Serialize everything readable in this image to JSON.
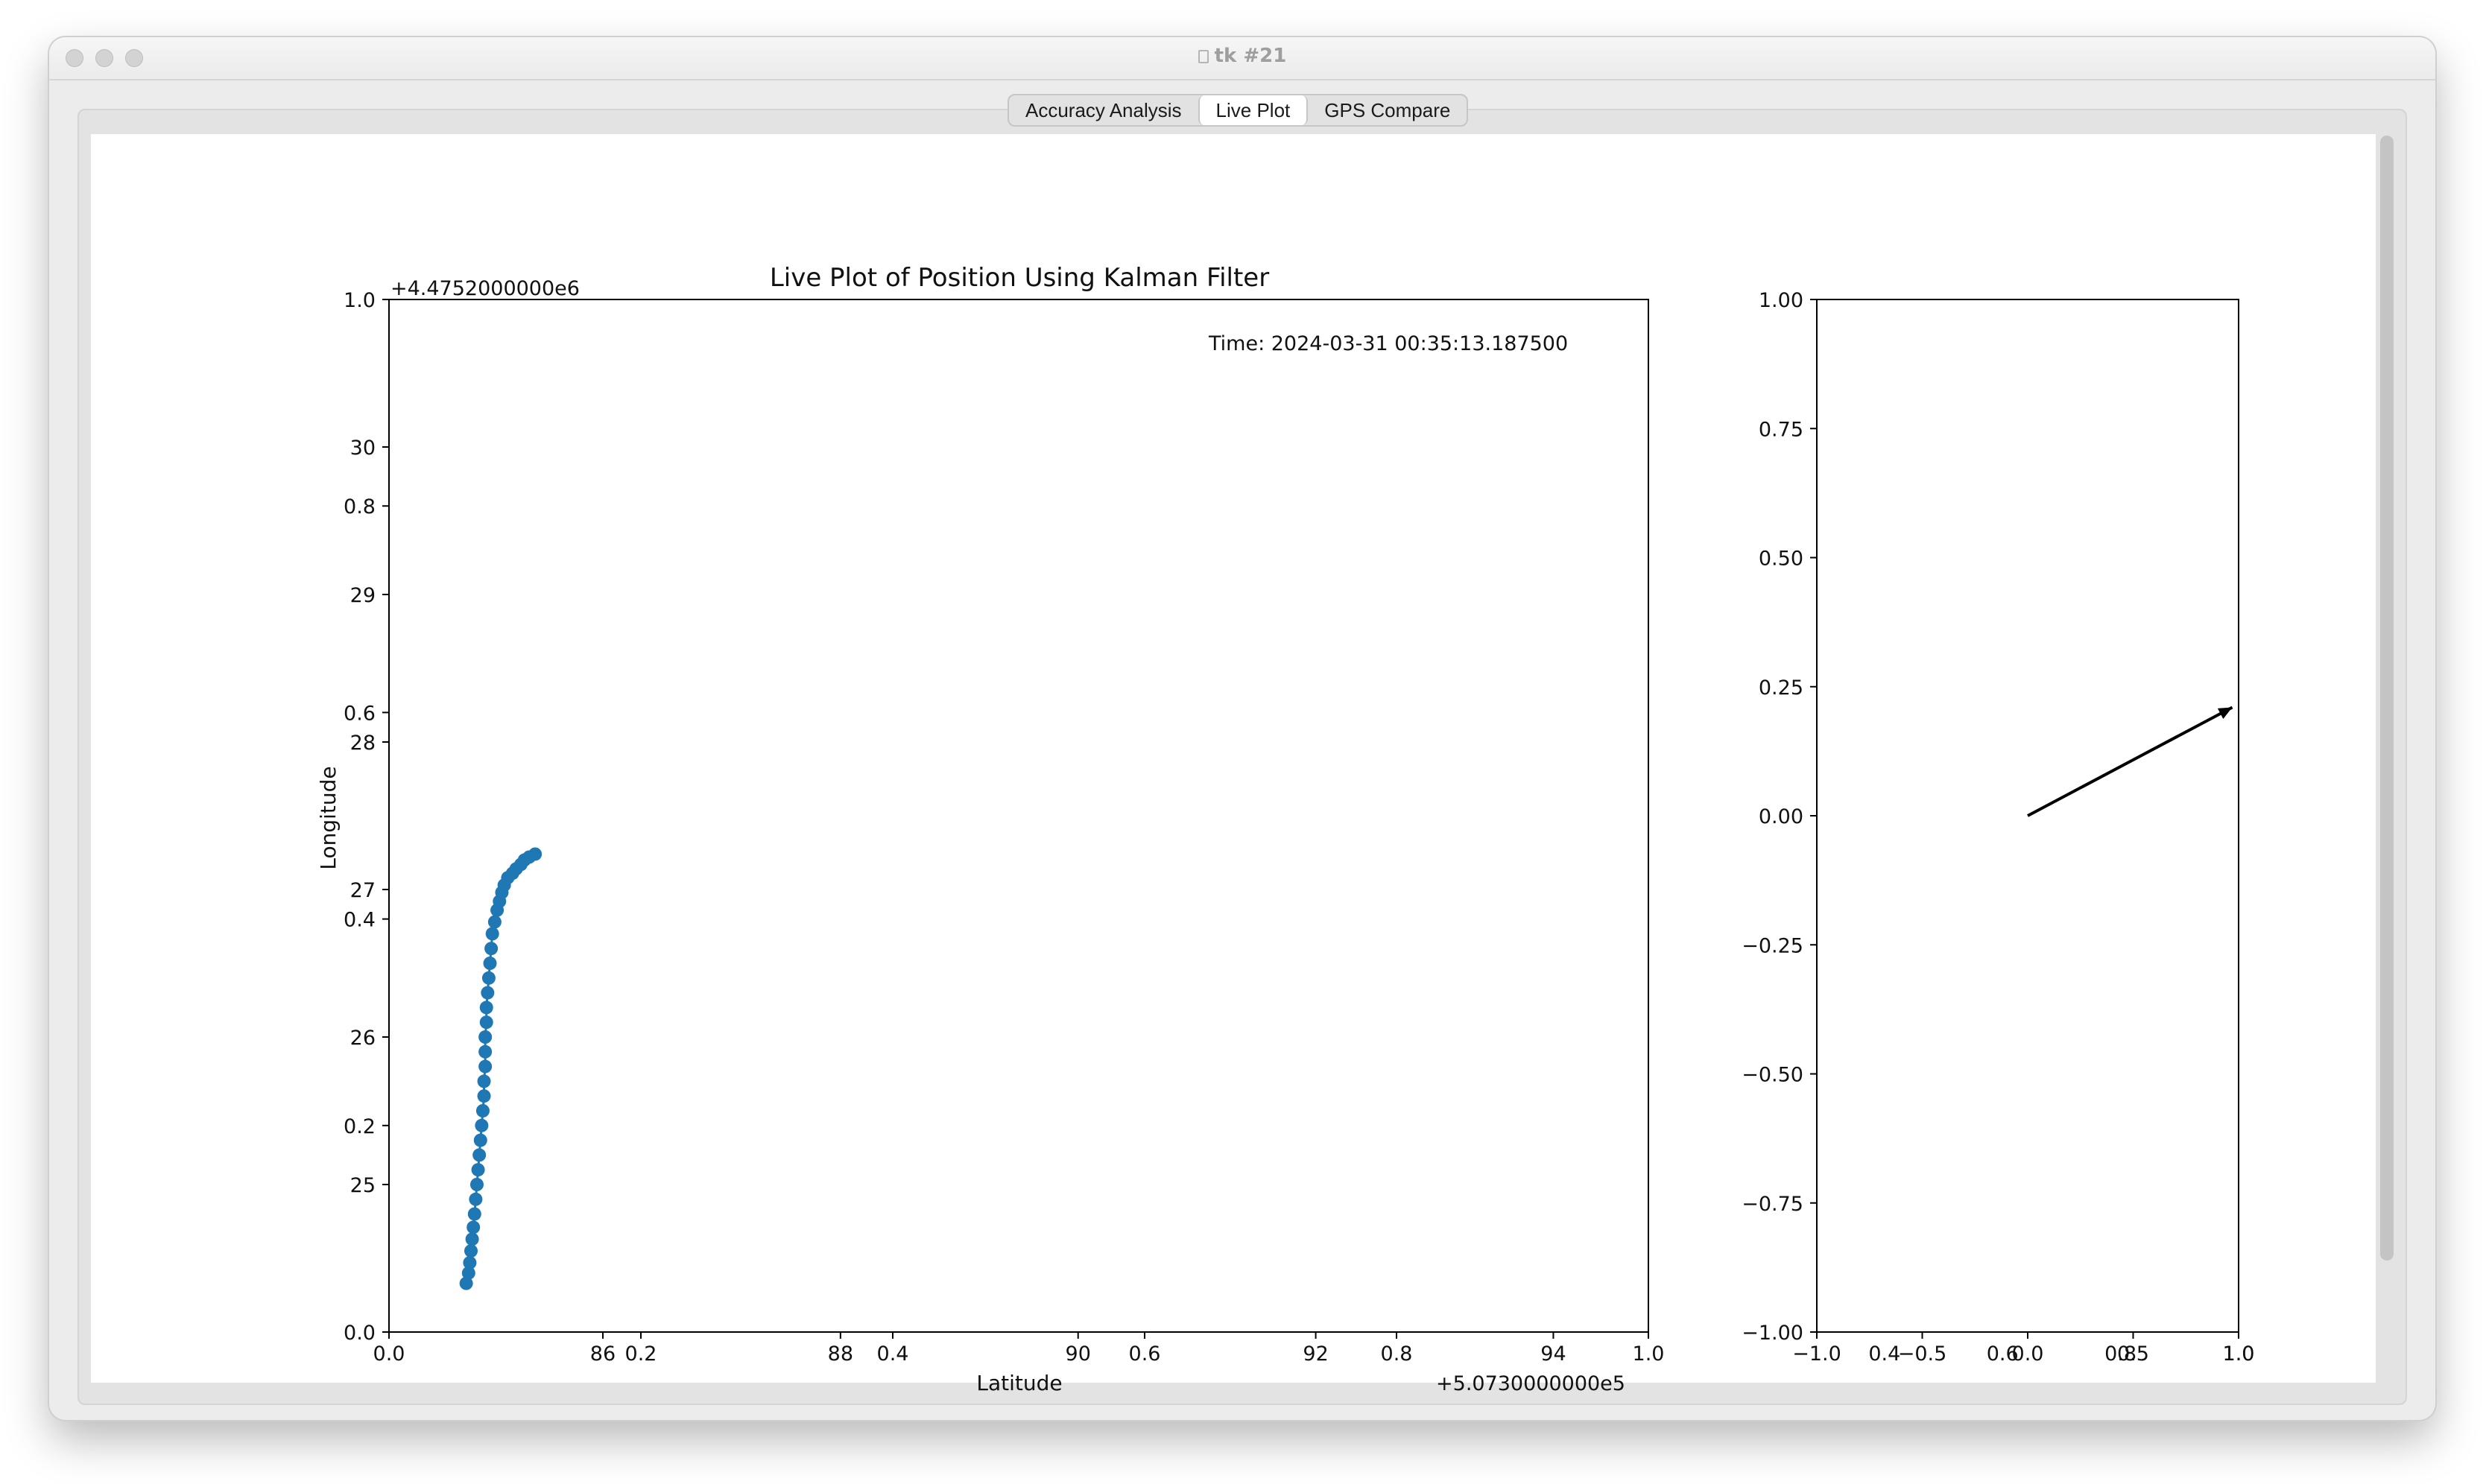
{
  "window": {
    "title": "tk #21",
    "tabs": [
      {
        "label": "Accuracy Analysis",
        "selected": false
      },
      {
        "label": "Live Plot",
        "selected": true
      },
      {
        "label": "GPS Compare",
        "selected": false
      }
    ]
  },
  "colors": {
    "series": "#1f77b4",
    "arrow": "#000000"
  },
  "chart_data": [
    {
      "type": "line",
      "title": "Live Plot of Position Using Kalman Filter",
      "xlabel": "Latitude",
      "ylabel": "Longitude",
      "x_offset_label": "+5.0730000000e5",
      "y_offset_label": "+4.4752000000e6",
      "annotation": "Time: 2024-03-31 00:35:13.187500",
      "primary_x_ticks": [
        "0.0",
        "0.2",
        "0.4",
        "0.6",
        "0.8",
        "1.0"
      ],
      "primary_y_ticks": [
        "0.0",
        "0.2",
        "0.4",
        "0.6",
        "0.8",
        "1.0"
      ],
      "data_x_ticks": [
        "86",
        "88",
        "90",
        "92",
        "94"
      ],
      "data_y_ticks": [
        "25",
        "26",
        "27",
        "28",
        "29",
        "30"
      ],
      "xlim": [
        84.2,
        94.8
      ],
      "ylim": [
        24.0,
        31.0
      ],
      "series": [
        {
          "marker": "circle",
          "x": [
            84.85,
            84.87,
            84.88,
            84.89,
            84.9,
            84.91,
            84.92,
            84.93,
            84.94,
            84.95,
            84.96,
            84.97,
            84.98,
            84.99,
            85.0,
            85.0,
            85.01,
            85.01,
            85.01,
            85.02,
            85.02,
            85.03,
            85.04,
            85.05,
            85.06,
            85.07,
            85.09,
            85.11,
            85.13,
            85.15,
            85.17,
            85.2,
            85.24,
            85.27,
            85.31,
            85.34,
            85.38,
            85.43
          ],
          "y": [
            24.33,
            24.4,
            24.47,
            24.55,
            24.63,
            24.71,
            24.8,
            24.9,
            25.0,
            25.1,
            25.2,
            25.3,
            25.4,
            25.5,
            25.6,
            25.7,
            25.8,
            25.9,
            26.0,
            26.1,
            26.2,
            26.3,
            26.4,
            26.5,
            26.6,
            26.7,
            26.78,
            26.86,
            26.92,
            26.98,
            27.03,
            27.08,
            27.11,
            27.14,
            27.17,
            27.2,
            27.22,
            27.24
          ]
        }
      ]
    },
    {
      "type": "quiver",
      "y_ticks": [
        "1.00",
        "0.75",
        "0.50",
        "0.25",
        "0.00",
        "−0.25",
        "−0.50",
        "−0.75",
        "−1.00"
      ],
      "x_ticks": [
        "−1.0",
        "−0.5",
        "0.0",
        "0.5",
        "1.0"
      ],
      "overlap_x_ticks": [
        "0.4",
        "0.6",
        "0.8",
        "1.0"
      ],
      "xlim": [
        -1.0,
        1.0
      ],
      "ylim": [
        -1.0,
        1.0
      ],
      "arrow": {
        "x0": 0.0,
        "y0": 0.0,
        "dx": 0.97,
        "dy": 0.21
      }
    }
  ]
}
